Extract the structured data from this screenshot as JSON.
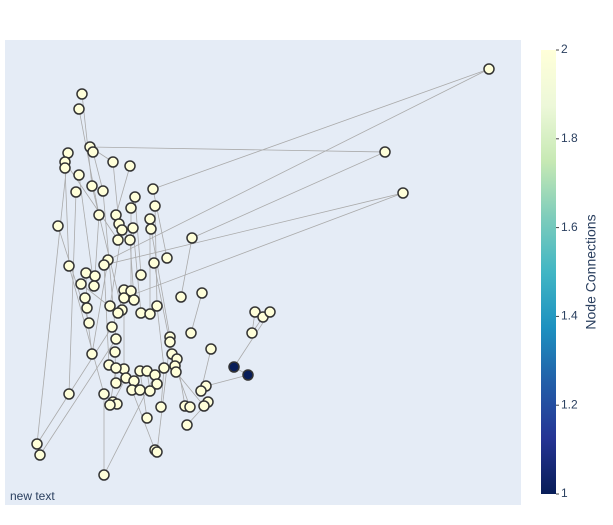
{
  "chart_data": {
    "type": "network",
    "annotation": "new text",
    "xlim": [
      5,
      521
    ],
    "ylim": [
      505,
      40
    ],
    "x": [
      489,
      82,
      79,
      385,
      90,
      93,
      68,
      65,
      65,
      113,
      130,
      79,
      92,
      103,
      153,
      76,
      135,
      403,
      155,
      131,
      99,
      116,
      150,
      119,
      133,
      122,
      58,
      151,
      192,
      118,
      130,
      108,
      104,
      167,
      154,
      69,
      86,
      95,
      141,
      81,
      94,
      124,
      131,
      134,
      124,
      157,
      181,
      202,
      85,
      87,
      110,
      122,
      118,
      141,
      150,
      255,
      263,
      270,
      89,
      112,
      252,
      191,
      170,
      116,
      170,
      211,
      92,
      115,
      172,
      177,
      234,
      248,
      109,
      124,
      116,
      140,
      147,
      164,
      175,
      176,
      155,
      126,
      116,
      134,
      157,
      206,
      201,
      132,
      140,
      150,
      69,
      104,
      208,
      113,
      117,
      110,
      161,
      185,
      190,
      204,
      147,
      187,
      37,
      40,
      155,
      157,
      104
    ],
    "y": [
      69,
      94,
      109,
      152,
      147,
      152,
      153,
      162,
      168,
      162,
      166,
      175,
      186,
      191,
      189,
      192,
      197,
      193,
      206,
      208,
      215,
      215,
      219,
      224,
      228,
      230,
      226,
      229,
      238,
      240,
      240,
      260,
      265,
      258,
      263,
      266,
      273,
      276,
      275,
      284,
      286,
      290,
      291,
      300,
      298,
      306,
      297,
      293,
      298,
      308,
      306,
      310,
      313,
      313,
      314,
      312,
      317,
      312,
      323,
      327,
      333,
      333,
      337,
      339,
      342,
      349,
      354,
      352,
      354,
      359,
      367,
      375,
      365,
      369,
      368,
      371,
      371,
      368,
      366,
      372,
      375,
      378,
      383,
      381,
      384,
      386,
      391,
      390,
      390,
      391,
      394,
      394,
      402,
      402,
      404,
      405,
      407,
      406,
      407,
      406,
      418,
      425,
      444,
      455,
      450,
      452,
      475
    ],
    "values": [
      2,
      2,
      2,
      2,
      2,
      2,
      2,
      2,
      2,
      2,
      2,
      2,
      2,
      2,
      2,
      2,
      2,
      2,
      2,
      2,
      2,
      2,
      2,
      2,
      2,
      2,
      2,
      2,
      2,
      2,
      2,
      2,
      2,
      2,
      2,
      2,
      2,
      2,
      2,
      2,
      2,
      2,
      2,
      2,
      2,
      2,
      2,
      2,
      2,
      2,
      2,
      2,
      2,
      2,
      2,
      2,
      2,
      2,
      2,
      2,
      2,
      2,
      2,
      2,
      2,
      2,
      2,
      2,
      2,
      2,
      1,
      1,
      2,
      2,
      2,
      2,
      2,
      2,
      2,
      2,
      2,
      2,
      2,
      2,
      2,
      2,
      2,
      2,
      2,
      2,
      2,
      2,
      2,
      2,
      2,
      2,
      2,
      2,
      2,
      2,
      2,
      2,
      2,
      2,
      2,
      2,
      2
    ],
    "edges": [
      [
        0,
        31
      ],
      [
        0,
        14
      ],
      [
        3,
        4
      ],
      [
        3,
        28
      ],
      [
        17,
        32
      ],
      [
        17,
        44
      ],
      [
        1,
        12
      ],
      [
        2,
        20
      ],
      [
        4,
        9
      ],
      [
        6,
        102
      ],
      [
        7,
        29
      ],
      [
        8,
        35
      ],
      [
        9,
        23
      ],
      [
        10,
        21
      ],
      [
        11,
        40
      ],
      [
        12,
        51
      ],
      [
        13,
        63
      ],
      [
        14,
        33
      ],
      [
        15,
        90
      ],
      [
        16,
        38
      ],
      [
        18,
        45
      ],
      [
        19,
        42
      ],
      [
        20,
        37
      ],
      [
        22,
        54
      ],
      [
        24,
        53
      ],
      [
        25,
        50
      ],
      [
        26,
        58
      ],
      [
        27,
        62
      ],
      [
        28,
        46
      ],
      [
        30,
        43
      ],
      [
        31,
        66
      ],
      [
        32,
        72
      ],
      [
        34,
        68
      ],
      [
        36,
        49
      ],
      [
        39,
        52
      ],
      [
        41,
        73
      ],
      [
        47,
        61
      ],
      [
        55,
        60
      ],
      [
        56,
        60
      ],
      [
        57,
        70
      ],
      [
        65,
        86
      ],
      [
        67,
        82
      ],
      [
        69,
        97
      ],
      [
        70,
        71
      ],
      [
        71,
        85
      ],
      [
        74,
        95
      ],
      [
        75,
        100
      ],
      [
        76,
        89
      ],
      [
        77,
        96
      ],
      [
        78,
        98
      ],
      [
        79,
        99
      ],
      [
        80,
        84
      ],
      [
        81,
        93
      ],
      [
        83,
        88
      ],
      [
        87,
        104
      ],
      [
        91,
        106
      ],
      [
        92,
        101
      ],
      [
        102,
        59
      ],
      [
        103,
        63
      ],
      [
        105,
        64
      ],
      [
        106,
        80
      ],
      [
        48,
        66
      ],
      [
        35,
        91
      ],
      [
        45,
        77
      ],
      [
        5,
        13
      ],
      [
        23,
        30
      ]
    ],
    "edge_color": "#aaaaaa",
    "background": "#e5ecf6",
    "colorscale": [
      "#081d58",
      "#253494",
      "#225ea8",
      "#1d91c0",
      "#41b6c4",
      "#7fcdbb",
      "#c7e9b4",
      "#edf8d9",
      "#ffffd9"
    ],
    "colorbar": {
      "title": "Node Connections",
      "lim": [
        1,
        2
      ],
      "ticks": [
        1,
        1.2,
        1.4,
        1.6,
        1.8,
        2
      ]
    }
  }
}
